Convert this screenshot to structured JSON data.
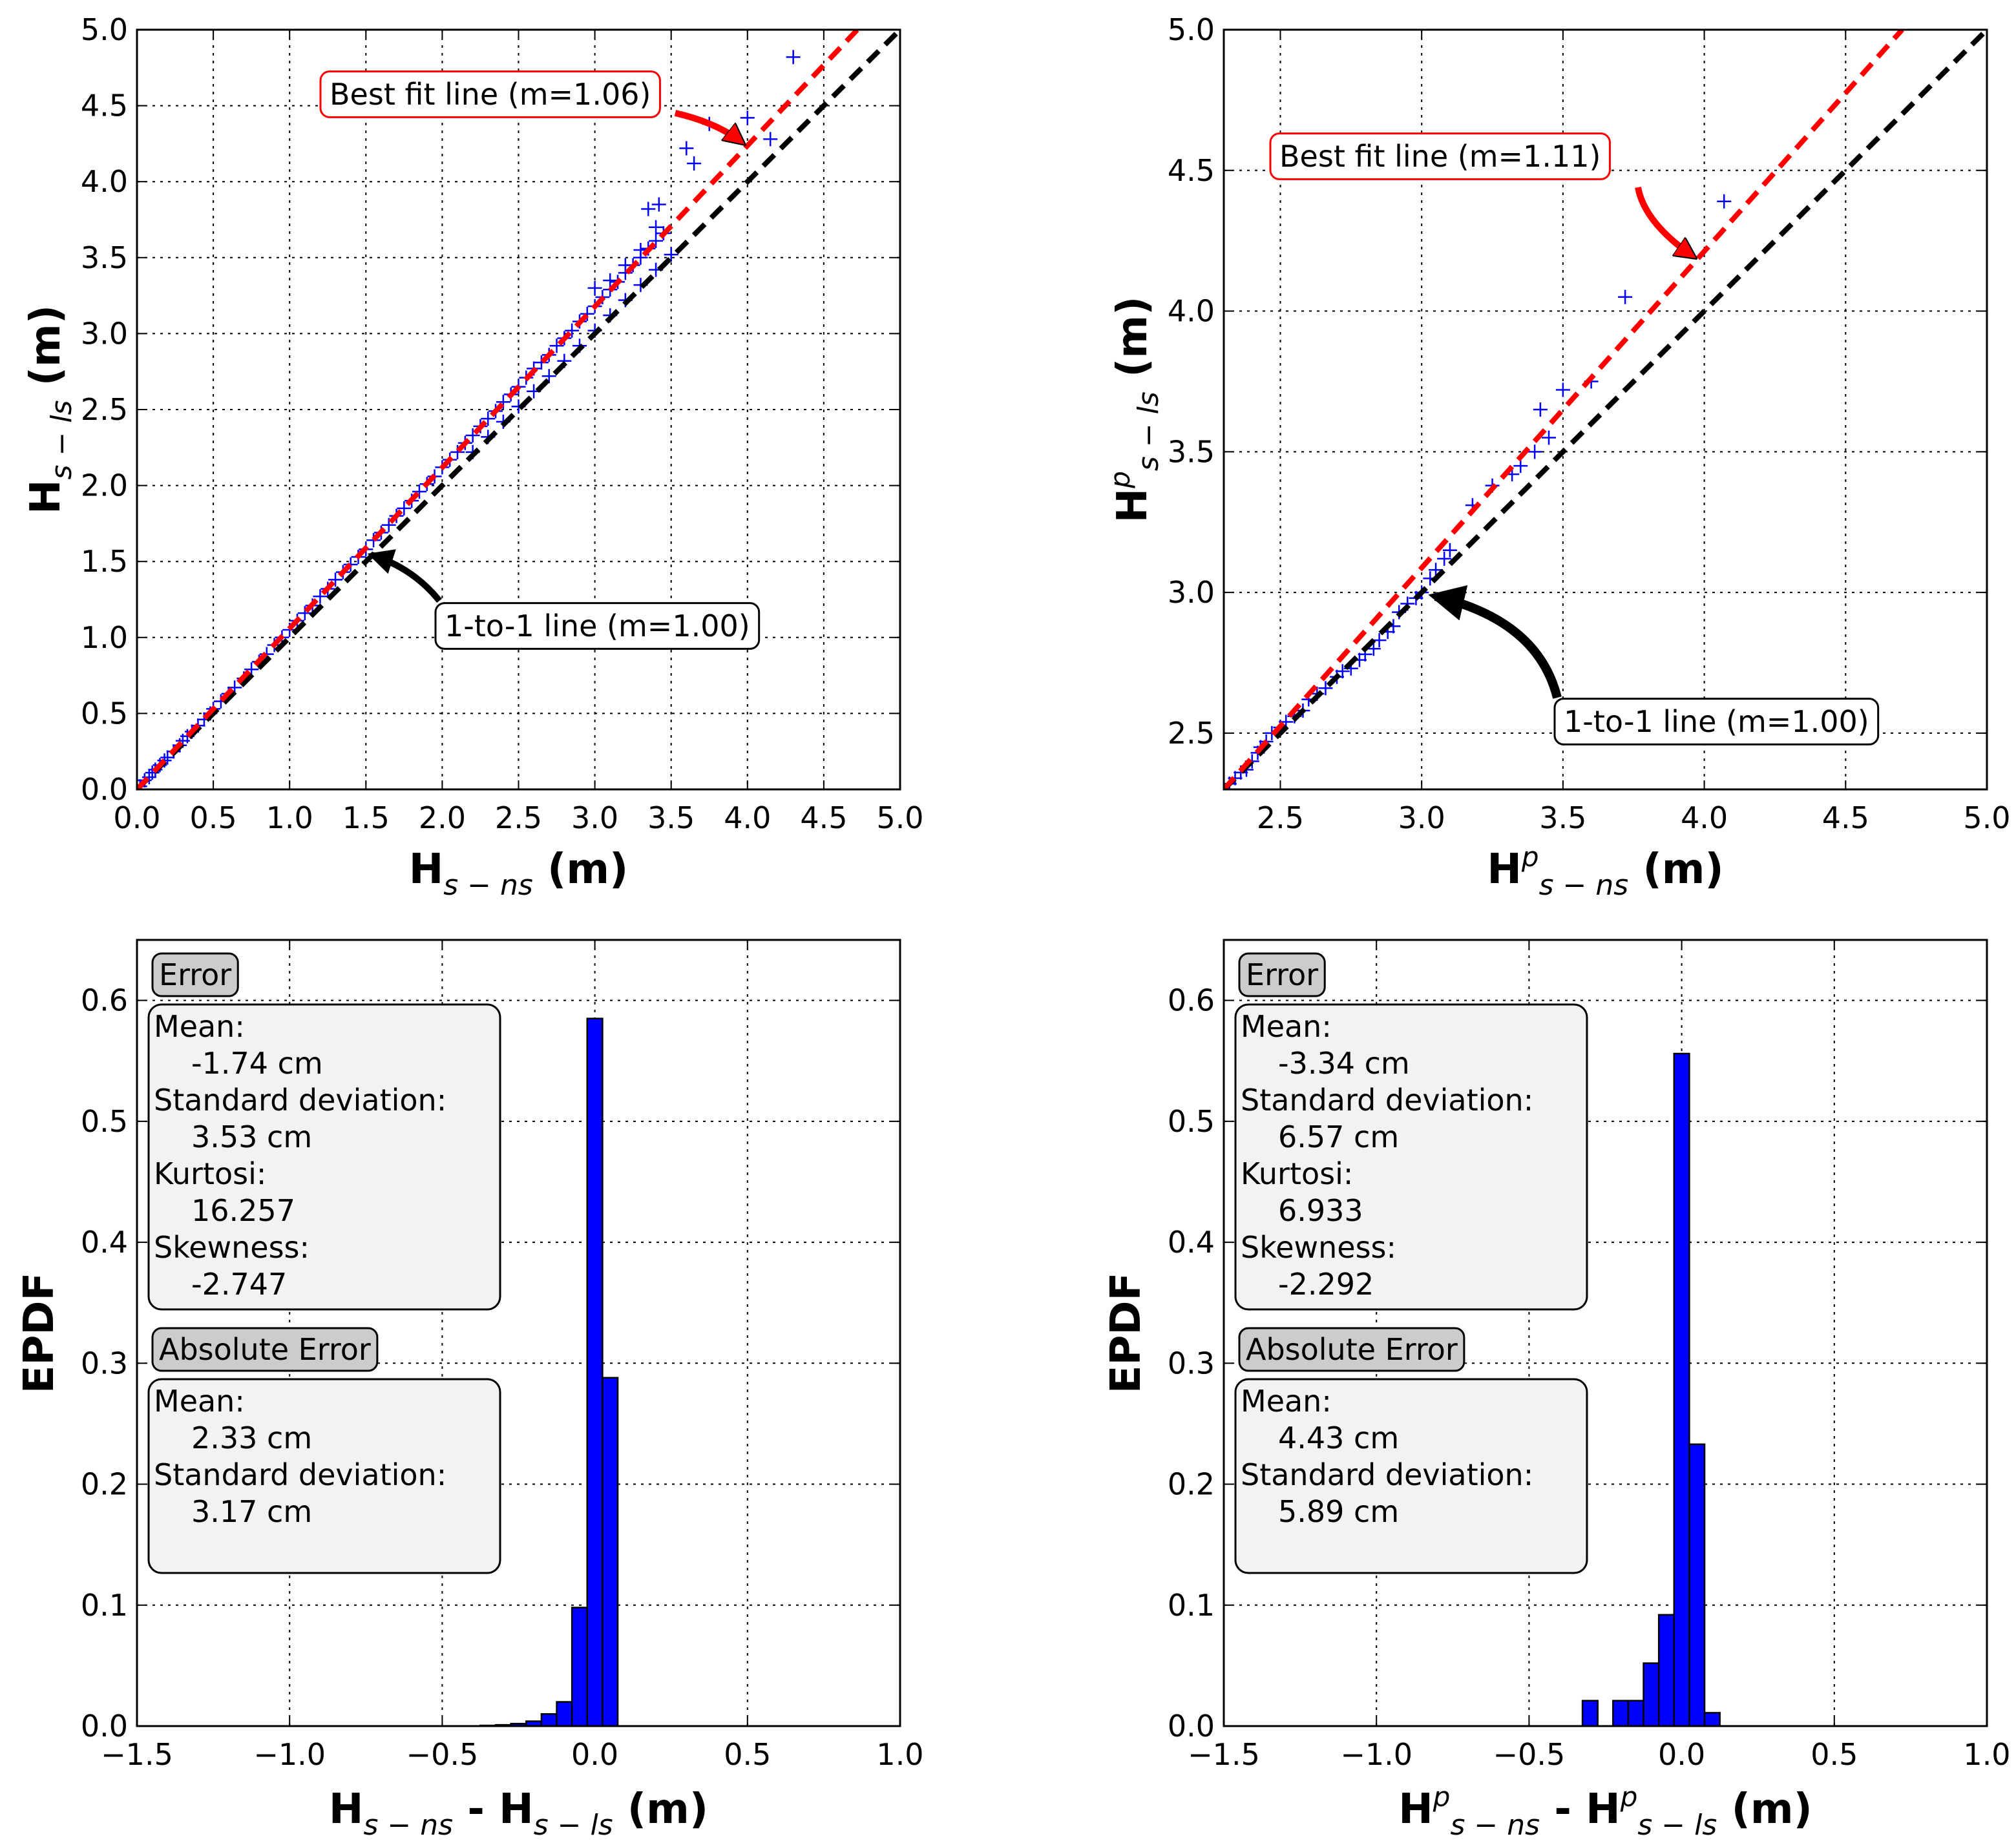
{
  "figure": {
    "title": ""
  },
  "chart_data": [
    {
      "id": "top-left",
      "type": "scatter",
      "title": "",
      "xlabel": {
        "main": "H",
        "sub": "s − ns",
        "unit": "(m)"
      },
      "ylabel": {
        "main": "H",
        "sub": "s − ls",
        "unit": "(m)"
      },
      "xlim": [
        0,
        5
      ],
      "ylim": [
        0,
        5
      ],
      "grid": true,
      "xticks": [
        0.0,
        0.5,
        1.0,
        1.5,
        2.0,
        2.5,
        3.0,
        3.5,
        4.0,
        4.5,
        5.0
      ],
      "yticks": [
        0.0,
        0.5,
        1.0,
        1.5,
        2.0,
        2.5,
        3.0,
        3.5,
        4.0,
        4.5,
        5.0
      ],
      "xtick_labels": [
        "0.0",
        "0.5",
        "1.0",
        "1.5",
        "2.0",
        "2.5",
        "3.0",
        "3.5",
        "4.0",
        "4.5",
        "5.0"
      ],
      "ytick_labels": [
        "0.0",
        "0.5",
        "1.0",
        "1.5",
        "2.0",
        "2.5",
        "3.0",
        "3.5",
        "4.0",
        "4.5",
        "5.0"
      ],
      "series": [
        {
          "name": "data",
          "color": "#0000ff",
          "marker": "+",
          "x": [
            0.02,
            0.05,
            0.08,
            0.1,
            0.12,
            0.15,
            0.18,
            0.2,
            0.24,
            0.28,
            0.3,
            0.33,
            0.36,
            0.4,
            0.44,
            0.48,
            0.5,
            0.55,
            0.6,
            0.64,
            0.7,
            0.75,
            0.8,
            0.85,
            0.9,
            0.95,
            1.0,
            1.05,
            1.1,
            1.15,
            1.2,
            1.25,
            1.3,
            1.35,
            1.4,
            1.45,
            1.5,
            1.55,
            1.6,
            1.65,
            1.7,
            1.75,
            1.8,
            1.85,
            1.9,
            1.95,
            2.0,
            2.05,
            2.1,
            2.15,
            2.2,
            2.25,
            2.3,
            2.35,
            2.4,
            2.45,
            2.5,
            2.55,
            2.6,
            2.65,
            2.7,
            2.75,
            2.8,
            2.85,
            2.9,
            2.95,
            3.0,
            3.05,
            3.1,
            3.15,
            3.2,
            3.25,
            3.3,
            3.35,
            3.4,
            3.45,
            2.2,
            2.3,
            2.4,
            2.5,
            2.6,
            2.7,
            2.8,
            2.9,
            3.0,
            3.1,
            3.2,
            3.3,
            3.4,
            3.5,
            3.0,
            3.1,
            3.2,
            3.3,
            3.4,
            3.35,
            3.42,
            3.6,
            3.65,
            3.75,
            4.0,
            4.15,
            4.3
          ],
          "y": [
            0.02,
            0.06,
            0.08,
            0.11,
            0.13,
            0.16,
            0.19,
            0.21,
            0.25,
            0.29,
            0.32,
            0.35,
            0.38,
            0.42,
            0.46,
            0.5,
            0.53,
            0.58,
            0.63,
            0.67,
            0.73,
            0.79,
            0.84,
            0.89,
            0.95,
            1.0,
            1.05,
            1.11,
            1.16,
            1.21,
            1.27,
            1.32,
            1.38,
            1.43,
            1.48,
            1.53,
            1.58,
            1.64,
            1.69,
            1.74,
            1.8,
            1.85,
            1.9,
            1.96,
            2.01,
            2.06,
            2.12,
            2.17,
            2.22,
            2.28,
            2.33,
            2.39,
            2.44,
            2.49,
            2.55,
            2.6,
            2.65,
            2.71,
            2.77,
            2.81,
            2.86,
            2.92,
            2.97,
            3.02,
            3.08,
            3.13,
            3.18,
            3.24,
            3.29,
            3.34,
            3.4,
            3.45,
            3.5,
            3.56,
            3.61,
            3.66,
            2.22,
            2.32,
            2.42,
            2.52,
            2.62,
            2.72,
            2.82,
            2.92,
            3.02,
            3.12,
            3.22,
            3.32,
            3.42,
            3.52,
            3.3,
            3.35,
            3.45,
            3.55,
            3.7,
            3.82,
            3.85,
            4.22,
            4.12,
            4.38,
            4.42,
            4.28,
            4.82
          ]
        },
        {
          "name": "1-to-1 line (m=1.00)",
          "color": "#000000",
          "style": "dashed",
          "x": [
            0,
            5
          ],
          "y": [
            0,
            5
          ]
        },
        {
          "name": "Best fit line (m=1.06)",
          "color": "#ff0000",
          "style": "dashed",
          "x": [
            0,
            4.72
          ],
          "y": [
            0,
            5.0
          ]
        }
      ],
      "annotations": [
        {
          "text": "Best fit line (m=1.06)",
          "style": "red-box",
          "arrow_to": [
            4.0,
            4.24
          ],
          "arrow_color": "#ff0000"
        },
        {
          "text": "1-to-1 line (m=1.00)",
          "style": "black-box",
          "arrow_to": [
            1.5,
            1.55
          ],
          "arrow_color": "#000000"
        }
      ]
    },
    {
      "id": "top-right",
      "type": "scatter",
      "title": "",
      "xlabel": {
        "main": "H",
        "sup": "p",
        "sub": "s − ns",
        "unit": "(m)"
      },
      "ylabel": {
        "main": "H",
        "sup": "p",
        "sub": "s − ls",
        "unit": "(m)"
      },
      "xlim": [
        2.3,
        5.0
      ],
      "ylim": [
        2.3,
        5.0
      ],
      "grid": true,
      "xticks": [
        2.5,
        3.0,
        3.5,
        4.0,
        4.5,
        5.0
      ],
      "yticks": [
        2.5,
        3.0,
        3.5,
        4.0,
        4.5,
        5.0
      ],
      "xtick_labels": [
        "2.5",
        "3.0",
        "3.5",
        "4.0",
        "4.5",
        "5.0"
      ],
      "ytick_labels": [
        "2.5",
        "3.0",
        "3.5",
        "4.0",
        "4.5",
        "5.0"
      ],
      "series": [
        {
          "name": "data",
          "color": "#0000ff",
          "marker": "+",
          "x": [
            2.32,
            2.34,
            2.36,
            2.38,
            2.4,
            2.42,
            2.43,
            2.45,
            2.47,
            2.5,
            2.52,
            2.55,
            2.58,
            2.6,
            2.63,
            2.66,
            2.7,
            2.72,
            2.75,
            2.78,
            2.8,
            2.83,
            2.85,
            2.88,
            2.9,
            2.92,
            2.95,
            2.98,
            3.0,
            3.03,
            3.05,
            3.08,
            3.1,
            3.18,
            3.25,
            3.32,
            3.35,
            3.4,
            3.42,
            3.45,
            3.5,
            3.6,
            3.72,
            4.07
          ],
          "y": [
            2.32,
            2.34,
            2.36,
            2.37,
            2.4,
            2.43,
            2.45,
            2.47,
            2.5,
            2.52,
            2.54,
            2.56,
            2.58,
            2.62,
            2.64,
            2.66,
            2.7,
            2.72,
            2.73,
            2.76,
            2.78,
            2.8,
            2.83,
            2.86,
            2.88,
            2.93,
            2.96,
            2.98,
            3.0,
            3.05,
            3.08,
            3.12,
            3.15,
            3.31,
            3.38,
            3.42,
            3.45,
            3.5,
            3.65,
            3.55,
            3.72,
            3.75,
            4.05,
            4.39
          ]
        },
        {
          "name": "1-to-1 line (m=1.00)",
          "color": "#000000",
          "style": "dashed",
          "x": [
            2.3,
            5.0
          ],
          "y": [
            2.3,
            5.0
          ]
        },
        {
          "name": "Best fit line (m=1.11)",
          "color": "#ff0000",
          "style": "dashed",
          "x": [
            2.3,
            4.7
          ],
          "y": [
            2.3,
            5.0
          ]
        }
      ],
      "annotations": [
        {
          "text": "Best fit line (m=1.11)",
          "style": "red-box",
          "arrow_to": [
            3.98,
            4.18
          ],
          "arrow_color": "#ff0000"
        },
        {
          "text": "1-to-1 line (m=1.00)",
          "style": "black-box",
          "arrow_to": [
            3.03,
            3.0
          ],
          "arrow_color": "#000000"
        }
      ]
    },
    {
      "id": "bottom-left",
      "type": "bar",
      "title": "",
      "xlabel": {
        "parts": [
          {
            "main": "H",
            "sub": "s − ns"
          },
          {
            "main": "H",
            "sub": "s − ls"
          }
        ],
        "unit": "(m)"
      },
      "ylabel": {
        "text": "EPDF"
      },
      "xlim": [
        -1.5,
        1.0
      ],
      "ylim": [
        0.0,
        0.65
      ],
      "grid": true,
      "xticks": [
        -1.5,
        -1.0,
        -0.5,
        0.0,
        0.5,
        1.0
      ],
      "yticks": [
        0.0,
        0.1,
        0.2,
        0.3,
        0.4,
        0.5,
        0.6
      ],
      "xtick_labels": [
        "−1.5",
        "−1.0",
        "−0.5",
        "0.0",
        "0.5",
        "1.0"
      ],
      "ytick_labels": [
        "0.0",
        "0.1",
        "0.2",
        "0.3",
        "0.4",
        "0.5",
        "0.6"
      ],
      "bin_width": 0.05,
      "bins": [
        {
          "x": -0.35,
          "value": 0.0005
        },
        {
          "x": -0.3,
          "value": 0.001
        },
        {
          "x": -0.25,
          "value": 0.002
        },
        {
          "x": -0.2,
          "value": 0.004
        },
        {
          "x": -0.15,
          "value": 0.01
        },
        {
          "x": -0.1,
          "value": 0.02
        },
        {
          "x": -0.05,
          "value": 0.098
        },
        {
          "x": 0.0,
          "value": 0.585
        },
        {
          "x": 0.05,
          "value": 0.288
        }
      ],
      "bar_color": "#0000ff",
      "stats": {
        "error_label": "Error",
        "error_lines": [
          "Mean:",
          "-1.74 cm",
          "Standard deviation:",
          "3.53 cm",
          "Kurtosi:",
          "16.257",
          "Skewness:",
          "-2.747"
        ],
        "abs_label": "Absolute Error",
        "abs_lines": [
          "Mean:",
          "2.33 cm",
          "Standard deviation:",
          "3.17 cm"
        ]
      }
    },
    {
      "id": "bottom-right",
      "type": "bar",
      "title": "",
      "xlabel": {
        "parts": [
          {
            "main": "H",
            "sup": "p",
            "sub": "s − ns"
          },
          {
            "main": "H",
            "sup": "p",
            "sub": "s − ls"
          }
        ],
        "unit": "(m)"
      },
      "ylabel": {
        "text": "EPDF"
      },
      "xlim": [
        -1.5,
        1.0
      ],
      "ylim": [
        0.0,
        0.65
      ],
      "grid": true,
      "xticks": [
        -1.5,
        -1.0,
        -0.5,
        0.0,
        0.5,
        1.0
      ],
      "yticks": [
        0.0,
        0.1,
        0.2,
        0.3,
        0.4,
        0.5,
        0.6
      ],
      "xtick_labels": [
        "−1.5",
        "−1.0",
        "−0.5",
        "0.0",
        "0.5",
        "1.0"
      ],
      "ytick_labels": [
        "0.0",
        "0.1",
        "0.2",
        "0.3",
        "0.4",
        "0.5",
        "0.6"
      ],
      "bin_width": 0.05,
      "bins": [
        {
          "x": -0.3,
          "value": 0.021
        },
        {
          "x": -0.25,
          "value": 0.0
        },
        {
          "x": -0.2,
          "value": 0.021
        },
        {
          "x": -0.15,
          "value": 0.021
        },
        {
          "x": -0.1,
          "value": 0.052
        },
        {
          "x": -0.05,
          "value": 0.092
        },
        {
          "x": 0.0,
          "value": 0.556
        },
        {
          "x": 0.05,
          "value": 0.233
        },
        {
          "x": 0.1,
          "value": 0.011
        }
      ],
      "bar_color": "#0000ff",
      "stats": {
        "error_label": "Error",
        "error_lines": [
          "Mean:",
          "-3.34 cm",
          "Standard deviation:",
          "6.57 cm",
          "Kurtosi:",
          "6.933",
          "Skewness:",
          "-2.292"
        ],
        "abs_label": "Absolute Error",
        "abs_lines": [
          "Mean:",
          "4.43 cm",
          "Standard deviation:",
          "5.89 cm"
        ]
      }
    }
  ]
}
